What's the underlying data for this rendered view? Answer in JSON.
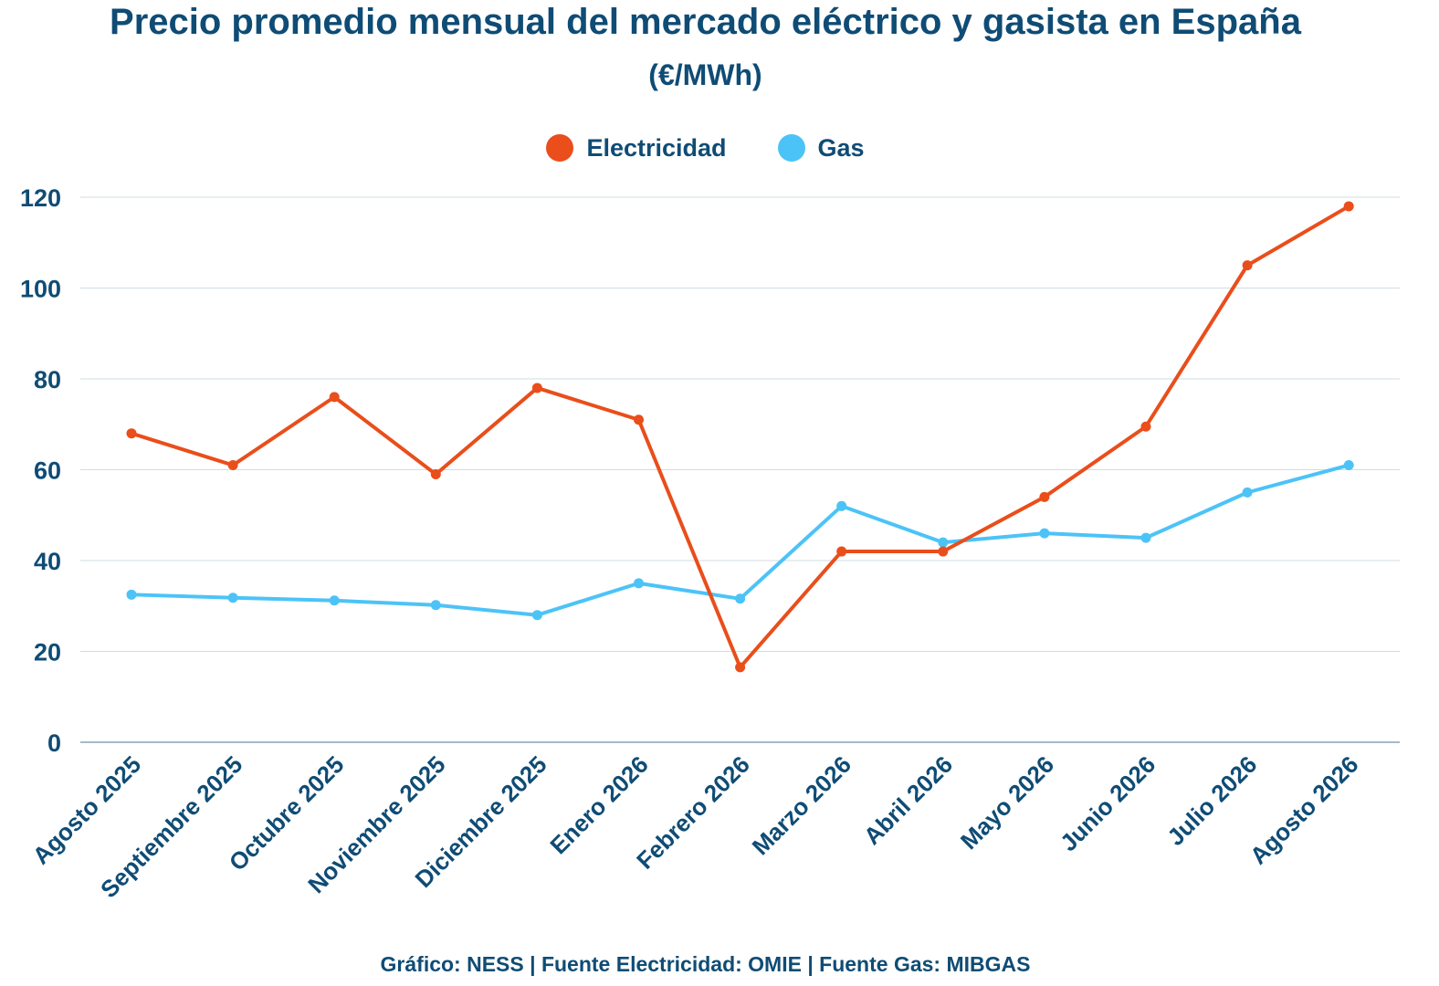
{
  "colors": {
    "electricity": "#e94e1b",
    "gas": "#4cc3f7",
    "text": "#0f4c75",
    "grid": "#cfdde6",
    "axis": "#8aa4b5"
  },
  "chart_data": {
    "type": "line",
    "title": "Precio promedio mensual del mercado eléctrico y gasista en España",
    "subtitle": "(€/MWh)",
    "categories": [
      "Agosto 2025",
      "Septiembre 2025",
      "Octubre 2025",
      "Noviembre 2025",
      "Diciembre 2025",
      "Enero 2026",
      "Febrero 2026",
      "Marzo 2026",
      "Abril 2026",
      "Mayo 2026",
      "Junio 2026",
      "Julio 2026",
      "Agosto 2026"
    ],
    "series": [
      {
        "name": "Electricidad",
        "color": "#e94e1b",
        "values": [
          68,
          61,
          76,
          59,
          78,
          71,
          16.5,
          42,
          42,
          54,
          69.5,
          105,
          118
        ]
      },
      {
        "name": "Gas",
        "color": "#4cc3f7",
        "values": [
          32.5,
          31.8,
          31.2,
          30.2,
          28,
          35,
          31.6,
          52,
          44,
          46,
          45,
          55,
          61
        ]
      }
    ],
    "yticks": [
      "0",
      "20",
      "40",
      "60",
      "80",
      "100",
      "120"
    ],
    "ylim": [
      0,
      120
    ],
    "grid": true,
    "legend_position": "top-center"
  },
  "footer": "Gráfico: NESS | Fuente Electricidad: OMIE | Fuente Gas: MIBGAS"
}
